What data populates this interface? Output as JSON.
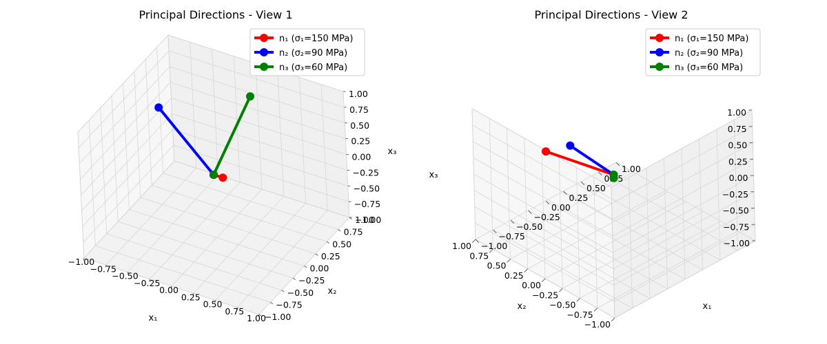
{
  "chart_data": [
    {
      "type": "line3d",
      "title": "Principal Directions - View 1",
      "xlabel": "x₁",
      "ylabel": "x₂",
      "zlabel": "x₃",
      "xlim": [
        -1,
        1
      ],
      "ylim": [
        -1,
        1
      ],
      "zlim": [
        -1,
        1
      ],
      "ticks": [
        "−1.00",
        "−0.75",
        "−0.50",
        "−0.25",
        "0.00",
        "0.25",
        "0.50",
        "0.75",
        "1.00"
      ],
      "grid": true,
      "legend_position": "top-right",
      "series": [
        {
          "name": "n₁ (σ₁=150 MPa)",
          "color": "#ff0000",
          "x": [
            0,
            0.105
          ],
          "y": [
            0,
            0.0
          ],
          "z": [
            0,
            0.0
          ]
        },
        {
          "name": "n₂ (σ₂=90 MPa)",
          "color": "#0000ff",
          "x": [
            0,
            -0.6
          ],
          "y": [
            0,
            0.0
          ],
          "z": [
            0,
            0.8
          ]
        },
        {
          "name": "n₃ (σ₃=60 MPa)",
          "color": "#008000",
          "x": [
            0,
            0.0
          ],
          "y": [
            0,
            0.85
          ],
          "z": [
            0,
            0.59
          ]
        }
      ]
    },
    {
      "type": "line3d",
      "title": "Principal Directions - View 2",
      "xlabel": "x₁",
      "ylabel": "x₂",
      "zlabel": "x₃",
      "xlim": [
        -1,
        1
      ],
      "ylim": [
        -1,
        1
      ],
      "zlim": [
        -1,
        1
      ],
      "ticks": [
        "−1.00",
        "−0.75",
        "−0.50",
        "−0.25",
        "0.00",
        "0.25",
        "0.50",
        "0.75",
        "1.00"
      ],
      "grid": true,
      "legend_position": "top-right",
      "series": [
        {
          "name": "n₁ (σ₁=150 MPa)",
          "color": "#ff0000",
          "x": [
            0,
            -0.01
          ],
          "y": [
            0,
            0.97
          ],
          "z": [
            0,
            -0.22
          ]
        },
        {
          "name": "n₂ (σ₂=90 MPa)",
          "color": "#0000ff",
          "x": [
            0,
            -0.6
          ],
          "y": [
            0,
            0.0
          ],
          "z": [
            0,
            0.8
          ]
        },
        {
          "name": "n₃ (σ₃=60 MPa)",
          "color": "#008000",
          "x": [
            0,
            0.0
          ],
          "y": [
            0,
            0.0
          ],
          "z": [
            0,
            -0.05
          ]
        }
      ]
    }
  ]
}
